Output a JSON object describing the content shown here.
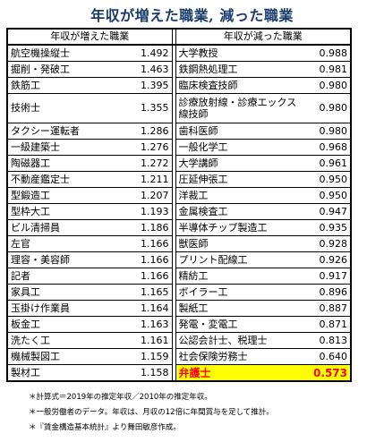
{
  "title": "年収が増えた職業, 減った職業",
  "headers": {
    "increased": "年収が増えた職業",
    "decreased": "年収が減った職業"
  },
  "increased": [
    {
      "name": "航空機操縦士",
      "value": "1.492"
    },
    {
      "name": "掘削・発破工",
      "value": "1.463"
    },
    {
      "name": "鉄筋工",
      "value": "1.395"
    },
    {
      "name": "技術士",
      "value": "1.355"
    },
    {
      "name": "タクシー運転者",
      "value": "1.286"
    },
    {
      "name": "一級建築士",
      "value": "1.276"
    },
    {
      "name": "陶磁器工",
      "value": "1.272"
    },
    {
      "name": "不動産鑑定士",
      "value": "1.211"
    },
    {
      "name": "型鍛造工",
      "value": "1.207"
    },
    {
      "name": "型枠大工",
      "value": "1.193"
    },
    {
      "name": "ビル清掃員",
      "value": "1.186"
    },
    {
      "name": "左官",
      "value": "1.166"
    },
    {
      "name": "理容・美容師",
      "value": "1.166"
    },
    {
      "name": "記者",
      "value": "1.166"
    },
    {
      "name": "家具工",
      "value": "1.165"
    },
    {
      "name": "玉掛け作業員",
      "value": "1.164"
    },
    {
      "name": "板金工",
      "value": "1.163"
    },
    {
      "name": "洗たく工",
      "value": "1.161"
    },
    {
      "name": "機械製図工",
      "value": "1.159"
    },
    {
      "name": "製材工",
      "value": "1.158"
    }
  ],
  "decreased": [
    {
      "name": "大学教授",
      "value": "0.988"
    },
    {
      "name": "鉄鋼熱処理工",
      "value": "0.981"
    },
    {
      "name": "臨床検査技師",
      "value": "0.980"
    },
    {
      "name": "診療放射線・診療エックス線技師",
      "value": "0.980"
    },
    {
      "name": "歯科医師",
      "value": "0.980"
    },
    {
      "name": "一般化学工",
      "value": "0.968"
    },
    {
      "name": "大学講師",
      "value": "0.961"
    },
    {
      "name": "圧延伸張工",
      "value": "0.950"
    },
    {
      "name": "洋裁工",
      "value": "0.950"
    },
    {
      "name": "金属検査工",
      "value": "0.947"
    },
    {
      "name": "半導体チップ製造工",
      "value": "0.935"
    },
    {
      "name": "獣医師",
      "value": "0.928"
    },
    {
      "name": "プリント配線工",
      "value": "0.926"
    },
    {
      "name": "精紡工",
      "value": "0.917"
    },
    {
      "name": "ボイラー工",
      "value": "0.896"
    },
    {
      "name": "製紙工",
      "value": "0.887"
    },
    {
      "name": "発電・変電工",
      "value": "0.871"
    },
    {
      "name": "公認会計士、税理士",
      "value": "0.813"
    },
    {
      "name": "社会保険労務士",
      "value": "0.640"
    },
    {
      "name": "弁護士",
      "value": "0.573"
    }
  ],
  "highlight_color": "#ffff00",
  "highlight_text_color": "#ff0000",
  "title_color": "#1a3d6d",
  "notes": [
    "＊計算式＝2019年の推定年収／2010年の推定年収。",
    "＊一般労働者のデータ。年収は、月収の12倍に年間賞与を足して推計。",
    "＊『賃金構造基本統計』より舞田敏彦作成。"
  ]
}
